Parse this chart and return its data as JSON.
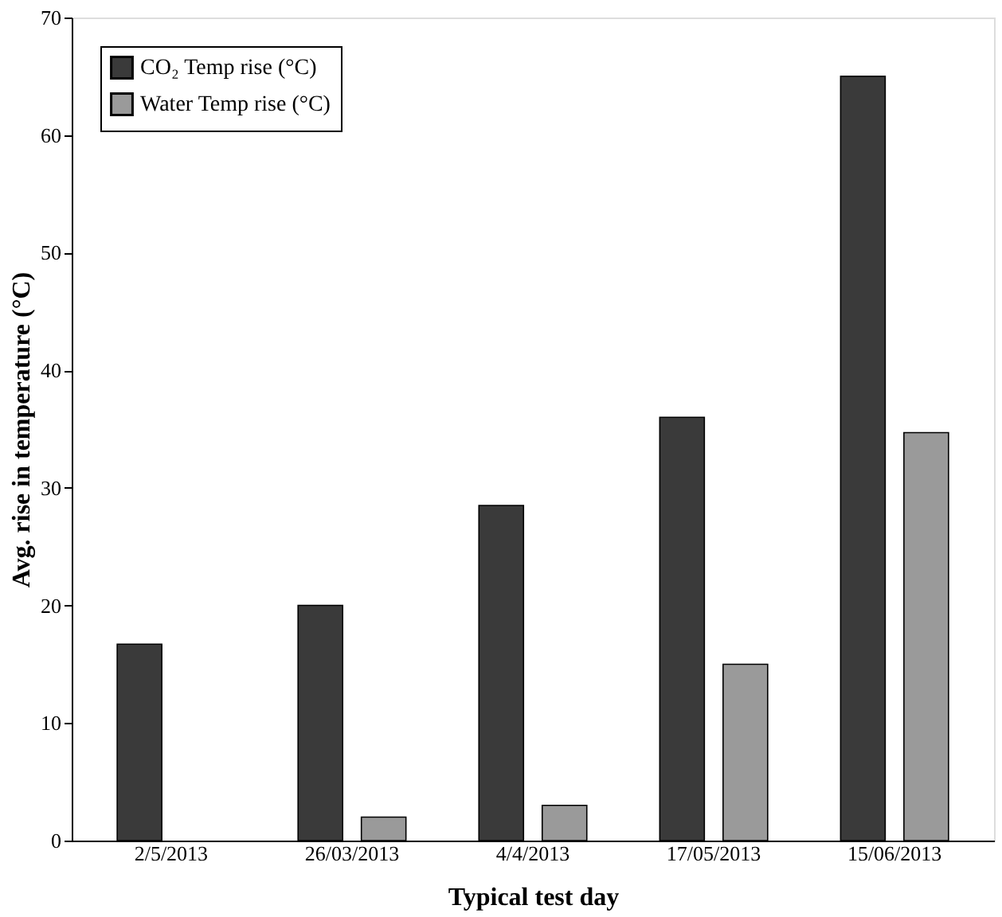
{
  "chart_data": {
    "type": "bar",
    "xlabel": "Typical test day",
    "ylabel": "Avg. rise in temperature (°C)",
    "categories": [
      "2/5/2013",
      "26/03/2013",
      "4/4/2013",
      "17/05/2013",
      "15/06/2013"
    ],
    "series": [
      {
        "name": "CO₂ Temp rise (°C)",
        "color": "#3a3a3a",
        "values": [
          16.7,
          20,
          28.5,
          36,
          65
        ]
      },
      {
        "name": "Water Temp rise (°C)",
        "color": "#9a9a9a",
        "values": [
          null,
          2,
          3,
          15,
          34.7
        ]
      }
    ],
    "ylim": [
      0,
      70
    ],
    "yticks": [
      0,
      10,
      20,
      30,
      40,
      50,
      60,
      70
    ],
    "grid": false,
    "legend": "top left"
  }
}
